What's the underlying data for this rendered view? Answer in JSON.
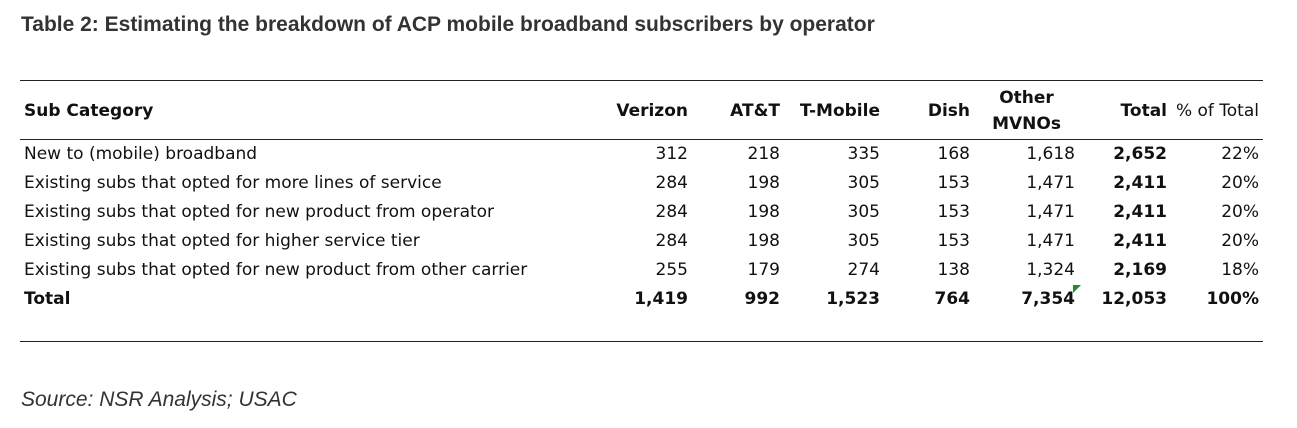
{
  "title": "Table 2: Estimating the breakdown of ACP mobile broadband subscribers by operator",
  "table": {
    "headers": [
      "Sub Category",
      "Verizon",
      "AT&T",
      "T-Mobile",
      "Dish",
      "Other MVNOs",
      "Total",
      "% of Total"
    ],
    "rows": [
      [
        "New to (mobile) broadband",
        "312",
        "218",
        "335",
        "168",
        "1,618",
        "2,652",
        "22%"
      ],
      [
        "Existing subs that opted for more lines of service",
        "284",
        "198",
        "305",
        "153",
        "1,471",
        "2,411",
        "20%"
      ],
      [
        "Existing subs that opted for new product from operator",
        "284",
        "198",
        "305",
        "153",
        "1,471",
        "2,411",
        "20%"
      ],
      [
        "Existing subs that opted for higher service tier",
        "284",
        "198",
        "305",
        "153",
        "1,471",
        "2,411",
        "20%"
      ],
      [
        "Existing subs that opted for new product from other carrier",
        "255",
        "179",
        "274",
        "138",
        "1,324",
        "2,169",
        "18%"
      ]
    ],
    "total_row": [
      "Total",
      "1,419",
      "992",
      "1,523",
      "764",
      "7,354",
      "12,053",
      "100%"
    ]
  },
  "source": "Source: NSR Analysis; USAC",
  "colors": {
    "mark": "#1f8a2e",
    "rule": "#222222"
  }
}
